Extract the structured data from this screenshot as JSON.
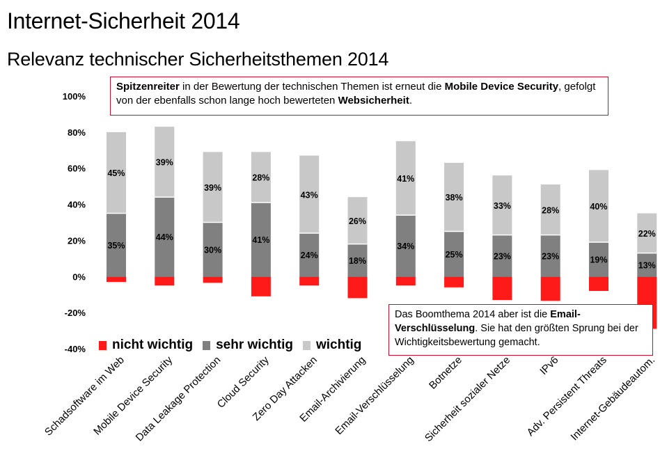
{
  "header": {
    "title": "Internet-Sicherheit 2014",
    "subtitle": "Relevanz technischer Sicherheitsthemen 2014"
  },
  "callouts": {
    "top": {
      "p1_bold": "Spitzenreiter",
      "p2": " in der Bewertung der technischen Themen ist erneut die ",
      "p3_bold": "Mobile Device Security",
      "p4": ", gefolgt von der ebenfalls schon lange hoch bewerteten ",
      "p5_bold": "Websicherheit",
      "p6": "."
    },
    "bottom": {
      "p1": "Das Boomthema 2014 aber ist die ",
      "p2_bold": "Email-Verschlüsselung",
      "p3": ". Sie hat den größten Sprung bei der Wichtigkeitsbewertung gemacht."
    }
  },
  "colors": {
    "nicht_wichtig": "#ff1a1a",
    "sehr_wichtig": "#808080",
    "wichtig": "#c8c8c8",
    "callout_border": "#c8102e"
  },
  "chart_data": {
    "type": "bar",
    "stacked": true,
    "categories": [
      "Schadsoftware im Web",
      "Mobile Device Security",
      "Data Leakage  Protection",
      "Cloud Security",
      "Zero Day Attacken",
      "Email-Archivierung",
      "Email-Verschlüsselung",
      "Botnetze",
      "Sicherheit sozialer Netze",
      "IPv6",
      "Adv. Persistent Threats",
      "Internet-Gebäudeautom."
    ],
    "series": [
      {
        "name": "nicht wichtig",
        "color": "#ff1a1a",
        "values": [
          -3,
          -5,
          -3.5,
          -11,
          -5,
          -12,
          -5,
          -6,
          -13,
          -13.5,
          -8,
          -29
        ]
      },
      {
        "name": "sehr wichtig",
        "color": "#808080",
        "values": [
          35,
          44,
          30,
          41,
          24,
          18,
          34,
          25,
          23,
          23,
          19,
          13
        ],
        "labels": [
          "35%",
          "44%",
          "30%",
          "41%",
          "24%",
          "18%",
          "34%",
          "25%",
          "23%",
          "23%",
          "19%",
          "13%"
        ]
      },
      {
        "name": "wichtig",
        "color": "#c8c8c8",
        "values": [
          45,
          39,
          39,
          28,
          43,
          26,
          41,
          38,
          33,
          28,
          40,
          22
        ],
        "labels": [
          "45%",
          "39%",
          "39%",
          "28%",
          "43%",
          "26%",
          "41%",
          "38%",
          "33%",
          "28%",
          "40%",
          "22%"
        ]
      }
    ],
    "yticks": [
      "100%",
      "80%",
      "60%",
      "40%",
      "20%",
      "0%",
      "-20%",
      "-40%"
    ],
    "ylim": [
      -40,
      100
    ],
    "legend": "bottom-left",
    "grid": false
  }
}
